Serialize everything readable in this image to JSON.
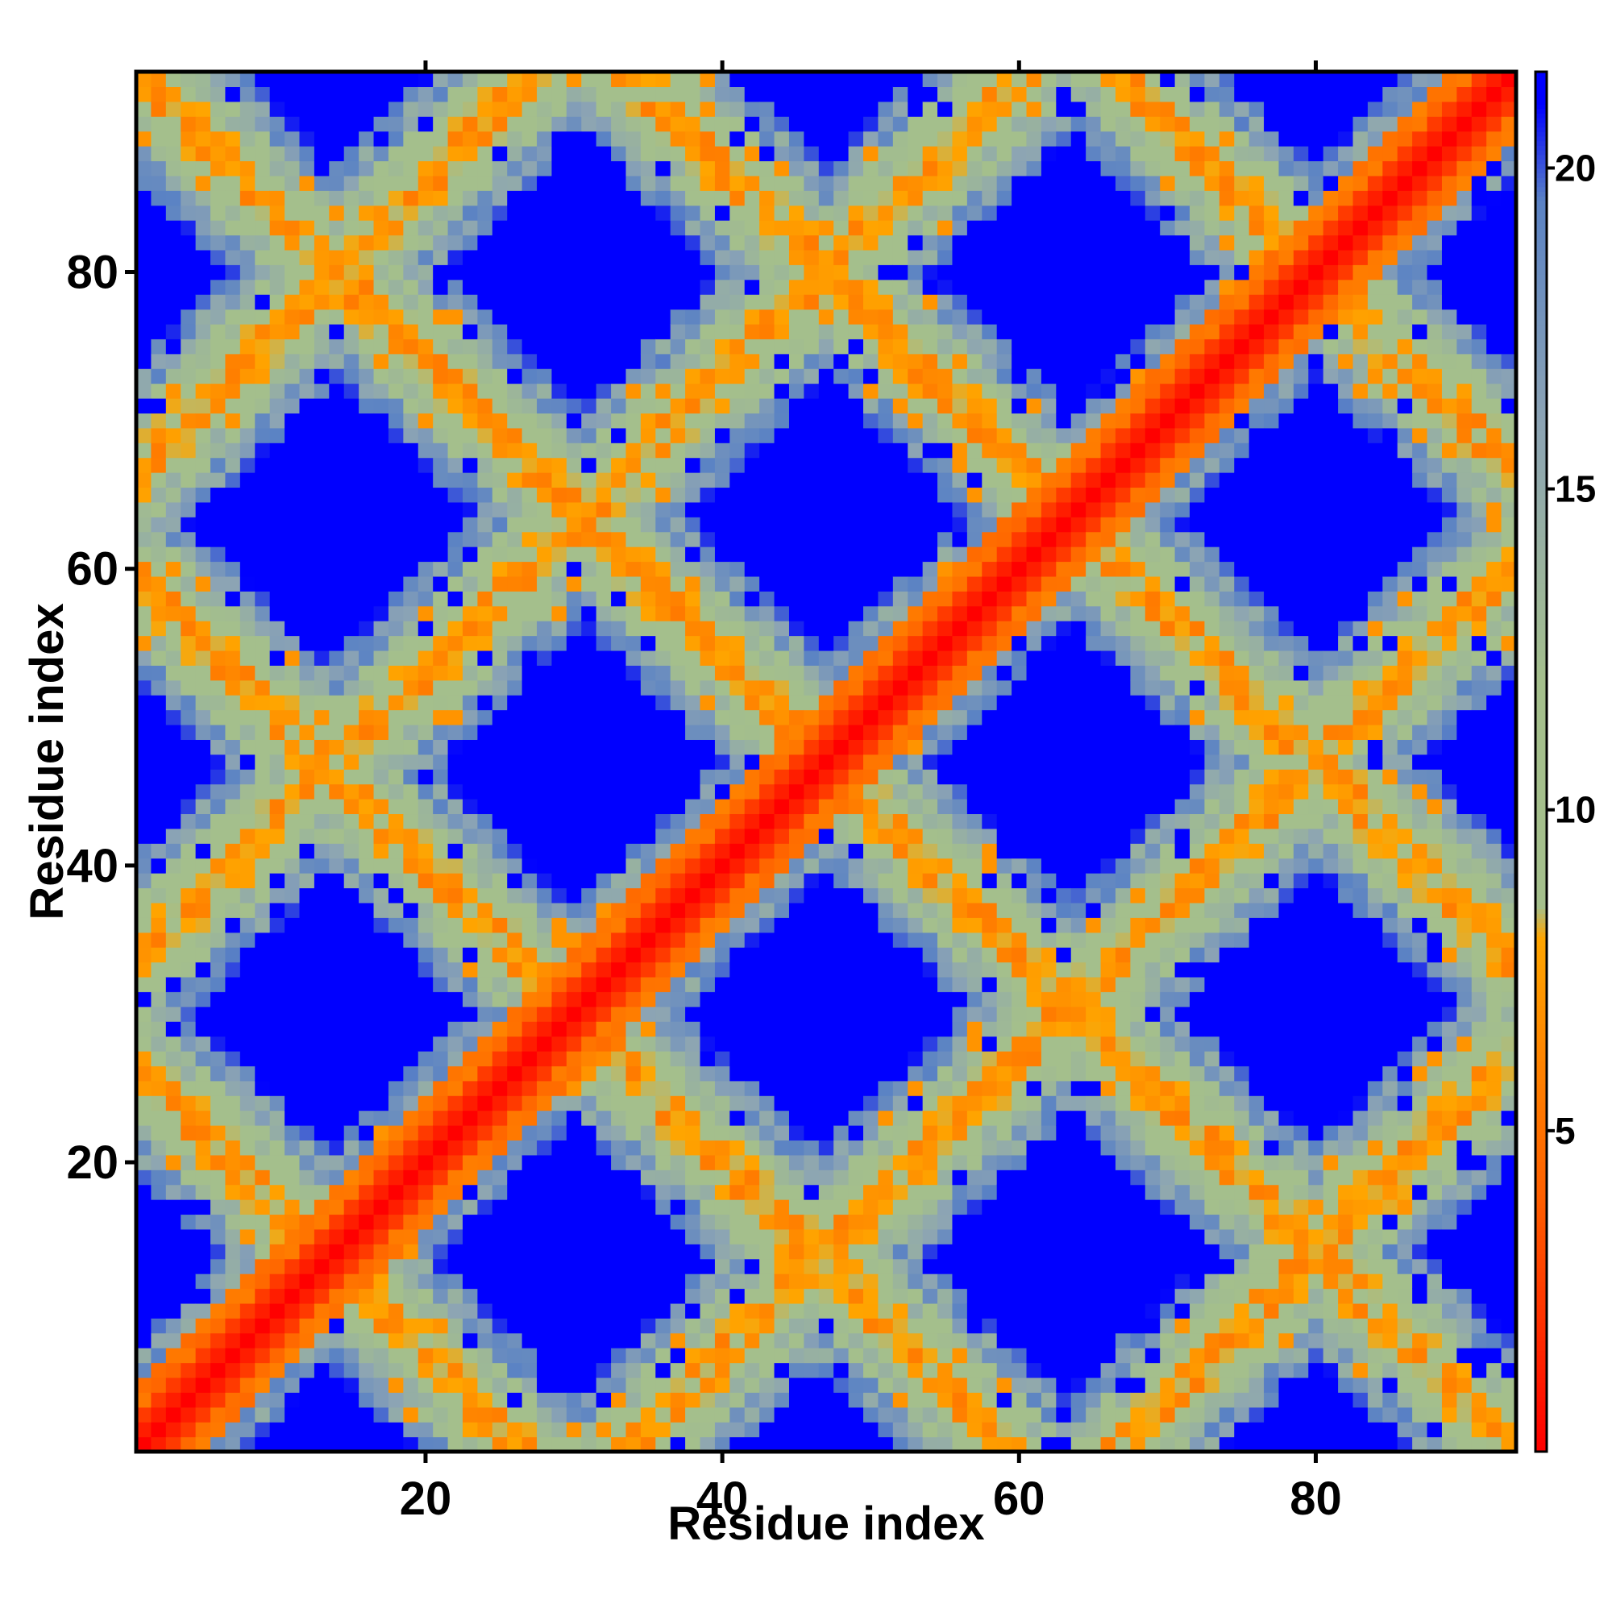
{
  "chart_data": {
    "type": "heatmap",
    "title": "",
    "xlabel": "Residue index",
    "ylabel": "Residue index",
    "n_residues": 93,
    "xlim": [
      1,
      93
    ],
    "ylim": [
      1,
      93
    ],
    "x_ticks": [
      20,
      40,
      60,
      80
    ],
    "y_ticks": [
      20,
      40,
      60,
      80
    ],
    "x_tick_labels": [
      "20",
      "40",
      "60",
      "80"
    ],
    "y_tick_labels": [
      "20",
      "40",
      "60",
      "80"
    ],
    "colorbar": {
      "ticks": [
        5,
        10,
        15,
        20
      ],
      "tick_labels": [
        "5",
        "10",
        "15",
        "20"
      ],
      "range": [
        0,
        21.5
      ],
      "stops": [
        {
          "value": 0.0,
          "color": "#ff0000"
        },
        {
          "value": 4.0,
          "color": "#ff6000"
        },
        {
          "value": 8.0,
          "color": "#ffa500"
        },
        {
          "value": 8.5,
          "color": "#a4bf8c"
        },
        {
          "value": 12.0,
          "color": "#a4bf8c"
        },
        {
          "value": 16.0,
          "color": "#8ca4b4"
        },
        {
          "value": 19.5,
          "color": "#5a82c4"
        },
        {
          "value": 21.0,
          "color": "#0000ff"
        },
        {
          "value": 21.5,
          "color": "#0000ff"
        }
      ]
    },
    "structure": {
      "description_values": "inter-residue distance map; diagonal band ~0-4, anti-diagonal contact bands ~5-8, background >21",
      "antidiagonal_sums": [
        27,
        60,
        94,
        127,
        160
      ],
      "diagonal_offsets": [
        -66,
        -33,
        33,
        66
      ],
      "blue_pocket_centers": [
        [
          12,
          77
        ],
        [
          38,
          77
        ],
        [
          65,
          77
        ],
        [
          89,
          77
        ],
        [
          25,
          64
        ],
        [
          52,
          64
        ],
        [
          79,
          64
        ],
        [
          12,
          43
        ],
        [
          38,
          43
        ],
        [
          65,
          43
        ],
        [
          89,
          43
        ],
        [
          25,
          32
        ],
        [
          52,
          32
        ],
        [
          79,
          32
        ],
        [
          12,
          10
        ],
        [
          38,
          10
        ],
        [
          65,
          10
        ],
        [
          89,
          10
        ],
        [
          25,
          88
        ],
        [
          52,
          88
        ],
        [
          79,
          88
        ],
        [
          25,
          2
        ],
        [
          52,
          2
        ],
        [
          79,
          2
        ]
      ]
    }
  },
  "colors": {
    "near": "#ff0000",
    "contact": "#ffa500",
    "mid": "#a4bf8c",
    "far": "#5a82c4",
    "background": "#0000ff"
  }
}
